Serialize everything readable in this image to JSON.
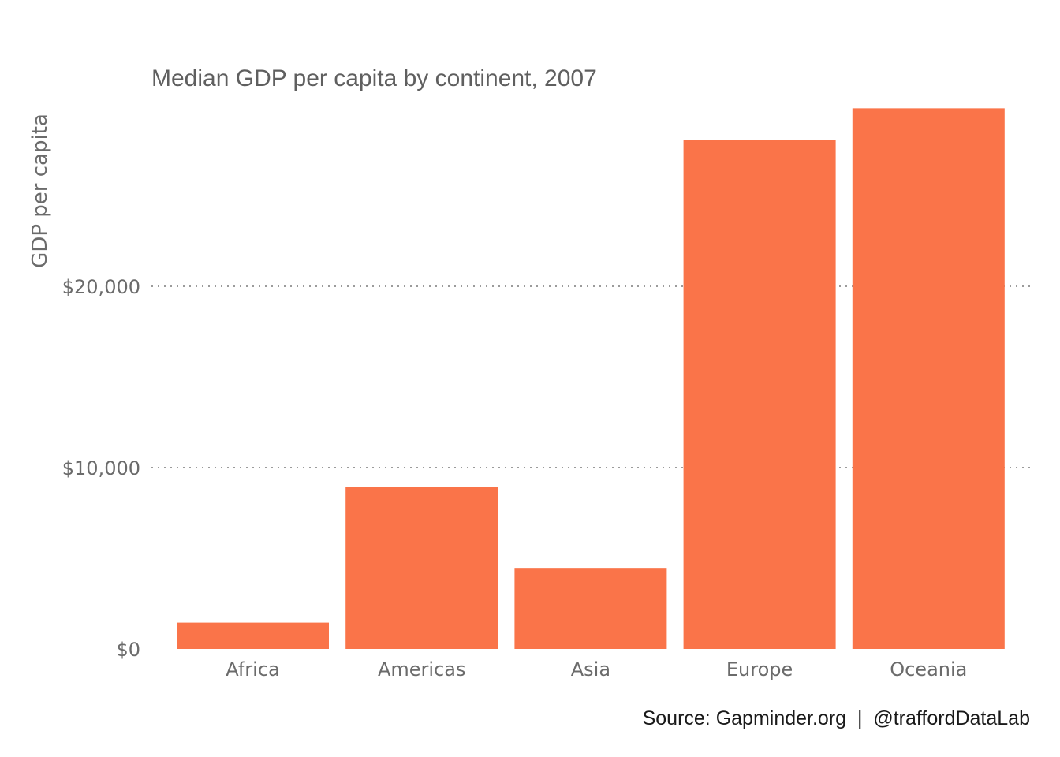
{
  "chart_data": {
    "type": "bar",
    "title": "Median GDP per capita by continent, 2007",
    "xlabel": "",
    "ylabel": "GDP per capita",
    "categories": [
      "Africa",
      "Americas",
      "Asia",
      "Europe",
      "Oceania"
    ],
    "values": [
      1452,
      8948,
      4471,
      28054,
      29810
    ],
    "ylim": [
      0,
      30000
    ],
    "yticks": [
      0,
      10000,
      20000
    ],
    "ytick_labels": [
      "$0",
      "$10,000",
      "$20,000"
    ],
    "grid": "horizontal dotted at major ticks",
    "legend": "none",
    "bar_color": "#fa7449",
    "caption": "Source: Gapminder.org  |  @traffordDataLab"
  }
}
